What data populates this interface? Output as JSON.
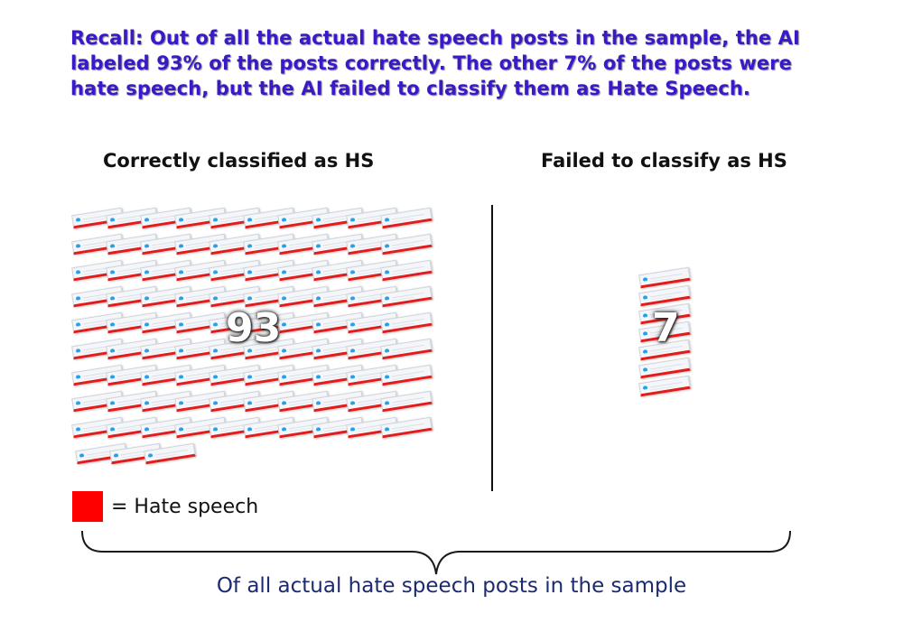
{
  "headline": "Recall: Out of all the actual hate speech posts in the sample, the AI labeled 93% of the posts correctly. The other 7% of the posts were hate speech, but the AI failed to classify them as Hate Speech.",
  "left_group": {
    "title": "Correctly classified as HS",
    "count": "93"
  },
  "right_group": {
    "title": "Failed to classify as HS",
    "count": "7"
  },
  "legend": {
    "color": "#ff0000",
    "label": "= Hate speech"
  },
  "bracket_caption": "Of all actual hate speech posts in the sample",
  "colors": {
    "headline": "#3b18c8",
    "card_border": "#e31b1b",
    "caption": "#1c2a70"
  },
  "icons": {
    "post_card": "tweet-card-icon",
    "bird": "twitter-bird-icon"
  }
}
